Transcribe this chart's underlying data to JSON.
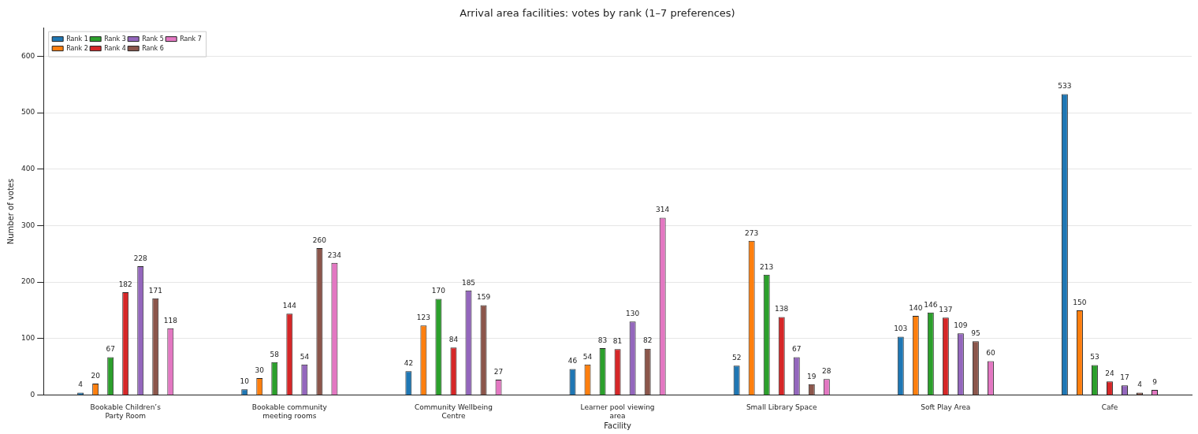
{
  "chart_data": {
    "type": "bar",
    "title": "Arrival area facilities: votes by rank (1–7 preferences)",
    "xlabel": "Facility",
    "ylabel": "Number of votes",
    "categories": [
      "Bookable Children’s Party Room",
      "Bookable community meeting rooms",
      "Community Wellbeing Centre",
      "Learner pool viewing area",
      "Small Library Space",
      "Soft Play Area",
      "Cafe"
    ],
    "series": [
      {
        "name": "Rank 1",
        "color": "#1f77b4",
        "values": [
          4,
          10,
          42,
          46,
          52,
          103,
          533
        ]
      },
      {
        "name": "Rank 2",
        "color": "#ff7f0e",
        "values": [
          20,
          30,
          123,
          54,
          273,
          140,
          150
        ]
      },
      {
        "name": "Rank 3",
        "color": "#2ca02c",
        "values": [
          67,
          58,
          170,
          83,
          213,
          146,
          53
        ]
      },
      {
        "name": "Rank 4",
        "color": "#d62728",
        "values": [
          182,
          144,
          84,
          81,
          138,
          137,
          24
        ]
      },
      {
        "name": "Rank 5",
        "color": "#9467bd",
        "values": [
          228,
          54,
          185,
          130,
          67,
          109,
          17
        ]
      },
      {
        "name": "Rank 6",
        "color": "#8c564b",
        "values": [
          171,
          260,
          159,
          82,
          19,
          95,
          4
        ]
      },
      {
        "name": "Rank 7",
        "color": "#e377c2",
        "values": [
          118,
          234,
          27,
          314,
          28,
          60,
          9
        ]
      }
    ],
    "ylim": [
      0,
      650
    ],
    "yticks": [
      0,
      100,
      200,
      300,
      400,
      500,
      600
    ],
    "grid": "y",
    "legend": "top left",
    "data_labels": true
  }
}
